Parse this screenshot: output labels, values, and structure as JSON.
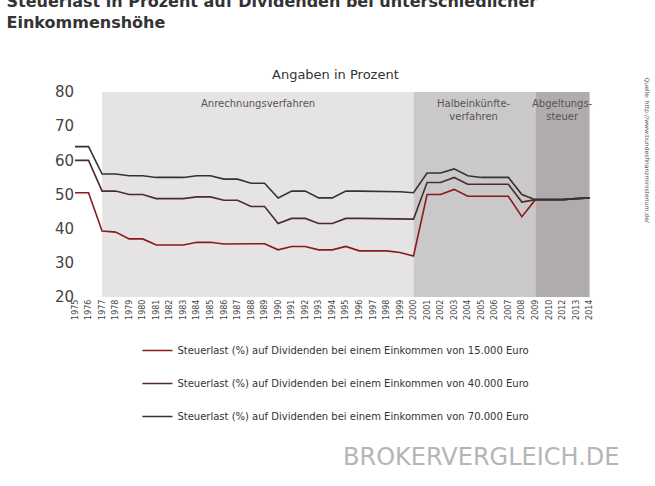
{
  "chart_data": {
    "type": "line",
    "title": "Steuerlast in Prozent auf Dividenden bei unterschiedlicher Einkommenshöhe",
    "subtitle": "Angaben in Prozent",
    "source": "Quelle: http://www.bundesfinanzministerium.de/",
    "watermark": "BROKERVERGLEICH.DE",
    "categories": [
      "1975",
      "1976",
      "1977",
      "1978",
      "1979",
      "1980",
      "1981",
      "1982",
      "1983",
      "1984",
      "1985",
      "1986",
      "1987",
      "1988",
      "1989",
      "1990",
      "1991",
      "1992",
      "1993",
      "1994",
      "1995",
      "1996",
      "1997",
      "1998",
      "1999",
      "2000",
      "2001",
      "2002",
      "2003",
      "2004",
      "2005",
      "2006",
      "2007",
      "2008",
      "2009",
      "2010",
      "2012",
      "2013",
      "2014"
    ],
    "series": [
      {
        "name": "Steuerlast (%) auf Dividenden bei einem Einkommen von 15.000 Euro",
        "color": "#8b1a1a",
        "values": [
          50.5,
          50.5,
          39.3,
          39,
          37,
          37,
          35.2,
          35.2,
          35.2,
          36,
          36,
          35.5,
          35.5,
          35.6,
          35.6,
          33.8,
          34.8,
          34.8,
          33.8,
          33.8,
          34.8,
          33.5,
          33.5,
          33.5,
          33,
          32,
          50,
          50,
          51.5,
          49.5,
          49.5,
          49.5,
          49.5,
          43.5,
          48.5,
          48.5,
          48.5,
          48.8,
          49
        ]
      },
      {
        "name": "Steuerlast (%) auf Dividenden bei einem Einkommen von 40.000 Euro",
        "color": "#4d2b2b",
        "values": [
          60,
          60,
          51,
          51,
          50,
          50,
          48.8,
          48.8,
          48.8,
          49.3,
          49.3,
          48.3,
          48.3,
          46.5,
          46.5,
          41.5,
          43,
          43,
          41.5,
          41.5,
          43,
          43,
          43,
          43,
          42.8,
          42.8,
          53.5,
          53.5,
          55,
          53,
          53,
          53,
          53,
          47.8,
          48.5,
          48.5,
          48.5,
          48.8,
          49
        ]
      },
      {
        "name": "Steuerlast (%) auf Dividenden bei einem Einkommen von 70.000 Euro",
        "color": "#333333",
        "values": [
          64,
          64,
          56,
          56,
          55.5,
          55.5,
          55,
          55,
          55,
          55.5,
          55.5,
          54.5,
          54.5,
          53.3,
          53.3,
          49,
          51,
          51,
          49,
          49,
          51,
          51,
          51,
          50.8,
          50.8,
          50.5,
          56.3,
          56.3,
          57.5,
          55.5,
          55,
          55,
          55,
          50,
          48.5,
          48.5,
          48.5,
          48.8,
          49
        ]
      }
    ],
    "annotations": [
      {
        "lines": [
          "Anrechnungsverfahren"
        ],
        "from": "1977",
        "to": "2000",
        "color": "#e6e3e4"
      },
      {
        "lines": [
          "Halbeinkünfte-",
          "verfahren"
        ],
        "from": "2000",
        "to": "2009",
        "color": "#cbc8c9"
      },
      {
        "lines": [
          "Abgeltungs-",
          "steuer"
        ],
        "from": "2009",
        "to": "2014",
        "color": "#b0abac"
      }
    ],
    "ylim": [
      20,
      80
    ],
    "yticks": [
      20,
      30,
      40,
      50,
      60,
      70,
      80
    ],
    "grid": false,
    "legend": "bottom"
  }
}
